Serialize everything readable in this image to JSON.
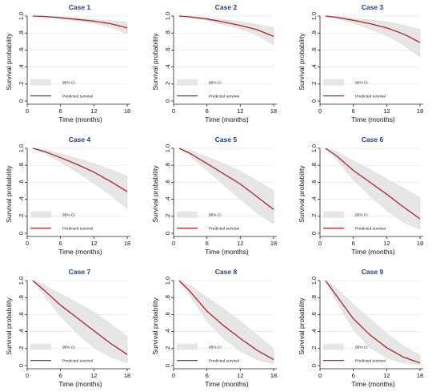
{
  "colors": {
    "title": "#1f3c88",
    "line": "#b22222",
    "ci_fill": "#e6e6e6",
    "ci_stroke": "#cfcfcf",
    "grid": "#dde8ee",
    "axis": "#222222"
  },
  "chart_data": [
    {
      "type": "area",
      "title": "Case 1",
      "xlabel": "Time (months)",
      "ylabel": "Survival probability",
      "xlim": [
        0,
        18
      ],
      "ylim": [
        0,
        1.0
      ],
      "x_ticks": [
        0,
        6,
        12,
        18
      ],
      "y_ticks": [
        0,
        0.2,
        0.4,
        0.6,
        0.8,
        1.0
      ],
      "x_tick_labels": [
        "0",
        "6",
        "12",
        "18"
      ],
      "y_tick_labels": [
        "0",
        ".2",
        ".4",
        ".6",
        ".8",
        "1.0"
      ],
      "grid": true,
      "legend_position": "bottom-left",
      "legend": [
        "95% CI",
        "Predicted survival"
      ],
      "x": [
        1,
        3,
        6,
        9,
        12,
        15,
        18
      ],
      "series": [
        {
          "name": "Predicted survival",
          "values": [
            1.0,
            0.995,
            0.98,
            0.96,
            0.94,
            0.91,
            0.86
          ]
        },
        {
          "name": "95% CI",
          "lower": [
            1.0,
            0.99,
            0.97,
            0.945,
            0.915,
            0.87,
            0.79
          ],
          "upper": [
            1.0,
            0.998,
            0.99,
            0.975,
            0.96,
            0.945,
            0.925
          ]
        }
      ]
    },
    {
      "type": "area",
      "title": "Case 2",
      "xlabel": "Time (months)",
      "ylabel": "Survival probability",
      "xlim": [
        0,
        18
      ],
      "ylim": [
        0,
        1.0
      ],
      "x_ticks": [
        0,
        6,
        12,
        18
      ],
      "y_ticks": [
        0,
        0.2,
        0.4,
        0.6,
        0.8,
        1.0
      ],
      "x_tick_labels": [
        "0",
        "6",
        "12",
        "18"
      ],
      "y_tick_labels": [
        "0",
        ".2",
        ".4",
        ".6",
        ".8",
        "1.0"
      ],
      "grid": true,
      "legend_position": "bottom-left",
      "legend": [
        "95% CI",
        "Predicted survival"
      ],
      "x": [
        1,
        3,
        6,
        9,
        12,
        15,
        18
      ],
      "series": [
        {
          "name": "Predicted survival",
          "values": [
            1.0,
            0.99,
            0.965,
            0.93,
            0.89,
            0.84,
            0.76
          ]
        },
        {
          "name": "95% CI",
          "lower": [
            1.0,
            0.985,
            0.95,
            0.9,
            0.85,
            0.78,
            0.66
          ],
          "upper": [
            1.0,
            0.996,
            0.98,
            0.96,
            0.93,
            0.9,
            0.86
          ]
        }
      ]
    },
    {
      "type": "area",
      "title": "Case 3",
      "xlabel": "Time (months)",
      "ylabel": "Survival probability",
      "xlim": [
        0,
        18
      ],
      "ylim": [
        0,
        1.0
      ],
      "x_ticks": [
        0,
        6,
        12,
        18
      ],
      "y_ticks": [
        0,
        0.2,
        0.4,
        0.6,
        0.8,
        1.0
      ],
      "x_tick_labels": [
        "0",
        "6",
        "12",
        "18"
      ],
      "y_tick_labels": [
        "0",
        ".2",
        ".4",
        ".6",
        ".8",
        "1.0"
      ],
      "grid": true,
      "legend_position": "bottom-left",
      "legend": [
        "95% CI",
        "Predicted survival"
      ],
      "x": [
        1,
        3,
        6,
        9,
        12,
        15,
        18
      ],
      "series": [
        {
          "name": "Predicted survival",
          "values": [
            1.0,
            0.985,
            0.95,
            0.91,
            0.86,
            0.79,
            0.69
          ]
        },
        {
          "name": "95% CI",
          "lower": [
            1.0,
            0.975,
            0.92,
            0.85,
            0.77,
            0.66,
            0.52
          ],
          "upper": [
            1.0,
            0.995,
            0.975,
            0.955,
            0.93,
            0.89,
            0.84
          ]
        }
      ]
    },
    {
      "type": "area",
      "title": "Case 4",
      "xlabel": "Time (months)",
      "ylabel": "Survival probability",
      "xlim": [
        0,
        18
      ],
      "ylim": [
        0,
        1.0
      ],
      "x_ticks": [
        0,
        6,
        12,
        18
      ],
      "y_ticks": [
        0,
        0.2,
        0.4,
        0.6,
        0.8,
        1.0
      ],
      "x_tick_labels": [
        "0",
        "6",
        "12",
        "18"
      ],
      "y_tick_labels": [
        "0",
        ".2",
        ".4",
        ".6",
        ".8",
        "1.0"
      ],
      "grid": true,
      "legend_position": "bottom-left",
      "legend": [
        "95% CI",
        "Predicted survival"
      ],
      "x": [
        1,
        3,
        6,
        9,
        12,
        15,
        18
      ],
      "series": [
        {
          "name": "Predicted survival",
          "values": [
            1.0,
            0.965,
            0.89,
            0.81,
            0.72,
            0.61,
            0.49
          ]
        },
        {
          "name": "95% CI",
          "lower": [
            1.0,
            0.945,
            0.84,
            0.72,
            0.59,
            0.45,
            0.29
          ],
          "upper": [
            1.0,
            0.985,
            0.935,
            0.88,
            0.82,
            0.75,
            0.67
          ]
        }
      ]
    },
    {
      "type": "area",
      "title": "Case 5",
      "xlabel": "Time (months)",
      "ylabel": "Survival probability",
      "xlim": [
        0,
        18
      ],
      "ylim": [
        0,
        1.0
      ],
      "x_ticks": [
        0,
        6,
        12,
        18
      ],
      "y_ticks": [
        0,
        0.2,
        0.4,
        0.6,
        0.8,
        1.0
      ],
      "x_tick_labels": [
        "0",
        "6",
        "12",
        "18"
      ],
      "y_tick_labels": [
        "0",
        ".2",
        ".4",
        ".6",
        ".8",
        "1.0"
      ],
      "grid": true,
      "legend_position": "bottom-left",
      "legend": [
        "95% CI",
        "Predicted survival"
      ],
      "x": [
        1,
        3,
        6,
        9,
        12,
        15,
        18
      ],
      "series": [
        {
          "name": "Predicted survival",
          "values": [
            1.0,
            0.94,
            0.82,
            0.7,
            0.58,
            0.43,
            0.28
          ]
        },
        {
          "name": "95% CI",
          "lower": [
            1.0,
            0.91,
            0.74,
            0.57,
            0.4,
            0.24,
            0.11
          ],
          "upper": [
            1.0,
            0.975,
            0.9,
            0.82,
            0.73,
            0.62,
            0.5
          ]
        }
      ]
    },
    {
      "type": "area",
      "title": "Case 6",
      "xlabel": "Time (months)",
      "ylabel": "Survival probability",
      "xlim": [
        0,
        18
      ],
      "ylim": [
        0,
        1.0
      ],
      "x_ticks": [
        0,
        6,
        12,
        18
      ],
      "y_ticks": [
        0,
        0.2,
        0.4,
        0.6,
        0.8,
        1.0
      ],
      "x_tick_labels": [
        "0",
        "6",
        "12",
        "18"
      ],
      "y_tick_labels": [
        "0",
        ".2",
        ".4",
        ".6",
        ".8",
        "1.0"
      ],
      "grid": true,
      "legend_position": "bottom-left",
      "legend": [
        "95% CI",
        "Predicted survival"
      ],
      "x": [
        1,
        3,
        6,
        9,
        12,
        15,
        18
      ],
      "series": [
        {
          "name": "Predicted survival",
          "values": [
            1.0,
            0.91,
            0.74,
            0.6,
            0.46,
            0.31,
            0.17
          ]
        },
        {
          "name": "95% CI",
          "lower": [
            1.0,
            0.87,
            0.63,
            0.44,
            0.27,
            0.13,
            0.05
          ],
          "upper": [
            1.0,
            0.96,
            0.85,
            0.75,
            0.64,
            0.53,
            0.42
          ]
        }
      ]
    },
    {
      "type": "area",
      "title": "Case 7",
      "xlabel": "Time (months)",
      "ylabel": "Survival probability",
      "xlim": [
        0,
        18
      ],
      "ylim": [
        0,
        1.0
      ],
      "x_ticks": [
        0,
        6,
        12,
        18
      ],
      "y_ticks": [
        0,
        0.2,
        0.4,
        0.6,
        0.8,
        1.0
      ],
      "x_tick_labels": [
        "0",
        "6",
        "12",
        "18"
      ],
      "y_tick_labels": [
        "0",
        ".2",
        ".4",
        ".6",
        ".8",
        "1.0"
      ],
      "grid": true,
      "legend_position": "bottom-left",
      "legend": [
        "95% CI",
        "Predicted survival"
      ],
      "x": [
        1,
        3,
        6,
        9,
        12,
        15,
        18
      ],
      "series": [
        {
          "name": "Predicted survival",
          "values": [
            1.0,
            0.89,
            0.71,
            0.56,
            0.41,
            0.26,
            0.13
          ]
        },
        {
          "name": "95% CI",
          "lower": [
            1.0,
            0.84,
            0.58,
            0.38,
            0.21,
            0.1,
            0.03
          ],
          "upper": [
            1.0,
            0.95,
            0.84,
            0.74,
            0.63,
            0.49,
            0.34
          ]
        }
      ]
    },
    {
      "type": "area",
      "title": "Case 8",
      "xlabel": "Time (months)",
      "ylabel": "Survival probability",
      "xlim": [
        0,
        18
      ],
      "ylim": [
        0,
        1.0
      ],
      "x_ticks": [
        0,
        6,
        12,
        18
      ],
      "y_ticks": [
        0,
        0.2,
        0.4,
        0.6,
        0.8,
        1.0
      ],
      "x_tick_labels": [
        "0",
        "6",
        "12",
        "18"
      ],
      "y_tick_labels": [
        "0",
        ".2",
        ".4",
        ".6",
        ".8",
        "1.0"
      ],
      "grid": true,
      "legend_position": "bottom-left",
      "legend": [
        "95% CI",
        "Predicted survival"
      ],
      "x": [
        1,
        3,
        6,
        9,
        12,
        15,
        18
      ],
      "series": [
        {
          "name": "Predicted survival",
          "values": [
            1.0,
            0.87,
            0.64,
            0.47,
            0.32,
            0.18,
            0.07
          ]
        },
        {
          "name": "95% CI",
          "lower": [
            1.0,
            0.82,
            0.52,
            0.32,
            0.17,
            0.07,
            0.02
          ],
          "upper": [
            1.0,
            0.94,
            0.8,
            0.67,
            0.52,
            0.36,
            0.2
          ]
        }
      ]
    },
    {
      "type": "area",
      "title": "Case 9",
      "xlabel": "Time (months)",
      "ylabel": "Survival probability",
      "xlim": [
        0,
        18
      ],
      "ylim": [
        0,
        1.0
      ],
      "x_ticks": [
        0,
        6,
        12,
        18
      ],
      "y_ticks": [
        0,
        0.2,
        0.4,
        0.6,
        0.8,
        1.0
      ],
      "x_tick_labels": [
        "0",
        "6",
        "12",
        "18"
      ],
      "y_tick_labels": [
        "0",
        ".2",
        ".4",
        ".6",
        ".8",
        "1.0"
      ],
      "grid": true,
      "legend_position": "bottom-left",
      "legend": [
        "95% CI",
        "Predicted survival"
      ],
      "x": [
        1,
        3,
        6,
        9,
        12,
        15,
        18
      ],
      "series": [
        {
          "name": "Predicted survival",
          "values": [
            1.0,
            0.82,
            0.55,
            0.36,
            0.21,
            0.1,
            0.03
          ]
        },
        {
          "name": "95% CI",
          "lower": [
            1.0,
            0.76,
            0.42,
            0.21,
            0.09,
            0.03,
            0.01
          ],
          "upper": [
            1.0,
            0.91,
            0.72,
            0.55,
            0.38,
            0.23,
            0.12
          ]
        }
      ]
    }
  ]
}
